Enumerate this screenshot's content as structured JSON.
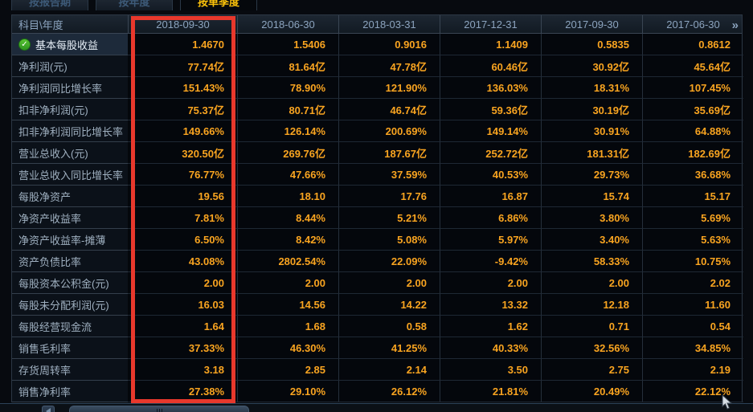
{
  "tabs": [
    {
      "label": "按报告期",
      "selected": false
    },
    {
      "label": "按年度",
      "selected": false
    },
    {
      "label": "按单季度",
      "selected": true
    }
  ],
  "table": {
    "corner_header": "科目\\年度",
    "columns": [
      "2018-09-30",
      "2018-06-30",
      "2018-03-31",
      "2017-12-31",
      "2017-09-30",
      "2017-06-30"
    ],
    "highlighted_column": "2018-09-30",
    "more_columns_icon": "chevron-double-right",
    "more_columns_glyph": "»",
    "rows": [
      {
        "label": "基本每股收益",
        "checked": true,
        "values": [
          "1.4670",
          "1.5406",
          "0.9016",
          "1.1409",
          "0.5835",
          "0.8612"
        ]
      },
      {
        "label": "净利润(元)",
        "checked": false,
        "values": [
          "77.74亿",
          "81.64亿",
          "47.78亿",
          "60.46亿",
          "30.92亿",
          "45.64亿"
        ]
      },
      {
        "label": "净利润同比增长率",
        "checked": false,
        "values": [
          "151.43%",
          "78.90%",
          "121.90%",
          "136.03%",
          "18.31%",
          "107.45%"
        ]
      },
      {
        "label": "扣非净利润(元)",
        "checked": false,
        "values": [
          "75.37亿",
          "80.71亿",
          "46.74亿",
          "59.36亿",
          "30.19亿",
          "35.69亿"
        ]
      },
      {
        "label": "扣非净利润同比增长率",
        "checked": false,
        "values": [
          "149.66%",
          "126.14%",
          "200.69%",
          "149.14%",
          "30.91%",
          "64.88%"
        ]
      },
      {
        "label": "营业总收入(元)",
        "checked": false,
        "values": [
          "320.50亿",
          "269.76亿",
          "187.67亿",
          "252.72亿",
          "181.31亿",
          "182.69亿"
        ]
      },
      {
        "label": "营业总收入同比增长率",
        "checked": false,
        "values": [
          "76.77%",
          "47.66%",
          "37.59%",
          "40.53%",
          "29.73%",
          "36.68%"
        ]
      },
      {
        "label": "每股净资产",
        "checked": false,
        "values": [
          "19.56",
          "18.10",
          "17.76",
          "16.87",
          "15.74",
          "15.17"
        ]
      },
      {
        "label": "净资产收益率",
        "checked": false,
        "values": [
          "7.81%",
          "8.44%",
          "5.21%",
          "6.86%",
          "3.80%",
          "5.69%"
        ]
      },
      {
        "label": "净资产收益率-摊薄",
        "checked": false,
        "values": [
          "6.50%",
          "8.42%",
          "5.08%",
          "5.97%",
          "3.40%",
          "5.63%"
        ]
      },
      {
        "label": "资产负债比率",
        "checked": false,
        "values": [
          "43.08%",
          "2802.54%",
          "22.09%",
          "-9.42%",
          "58.33%",
          "10.75%"
        ]
      },
      {
        "label": "每股资本公积金(元)",
        "checked": false,
        "values": [
          "2.00",
          "2.00",
          "2.00",
          "2.00",
          "2.00",
          "2.02"
        ]
      },
      {
        "label": "每股未分配利润(元)",
        "checked": false,
        "values": [
          "16.03",
          "14.56",
          "14.22",
          "13.32",
          "12.18",
          "11.60"
        ]
      },
      {
        "label": "每股经营现金流",
        "checked": false,
        "values": [
          "1.64",
          "1.68",
          "0.58",
          "1.62",
          "0.71",
          "0.54"
        ]
      },
      {
        "label": "销售毛利率",
        "checked": false,
        "values": [
          "37.33%",
          "46.30%",
          "41.25%",
          "40.33%",
          "32.56%",
          "34.85%"
        ]
      },
      {
        "label": "存货周转率",
        "checked": false,
        "values": [
          "3.18",
          "2.85",
          "2.14",
          "3.50",
          "2.75",
          "2.19"
        ]
      },
      {
        "label": "销售净利率",
        "checked": false,
        "values": [
          "27.38%",
          "29.10%",
          "26.12%",
          "21.81%",
          "20.49%",
          "22.12%"
        ]
      }
    ]
  },
  "icons": {
    "row_check": "check-circle",
    "check_glyph": "✓",
    "scrollbar_left": "scroll-left-arrow"
  },
  "colors": {
    "value_text": "#f9a420",
    "header_text": "#8ca4bf",
    "highlight_box": "#e8382c",
    "selected_tab_text": "#fdc30a",
    "check_green": "#3db531"
  }
}
